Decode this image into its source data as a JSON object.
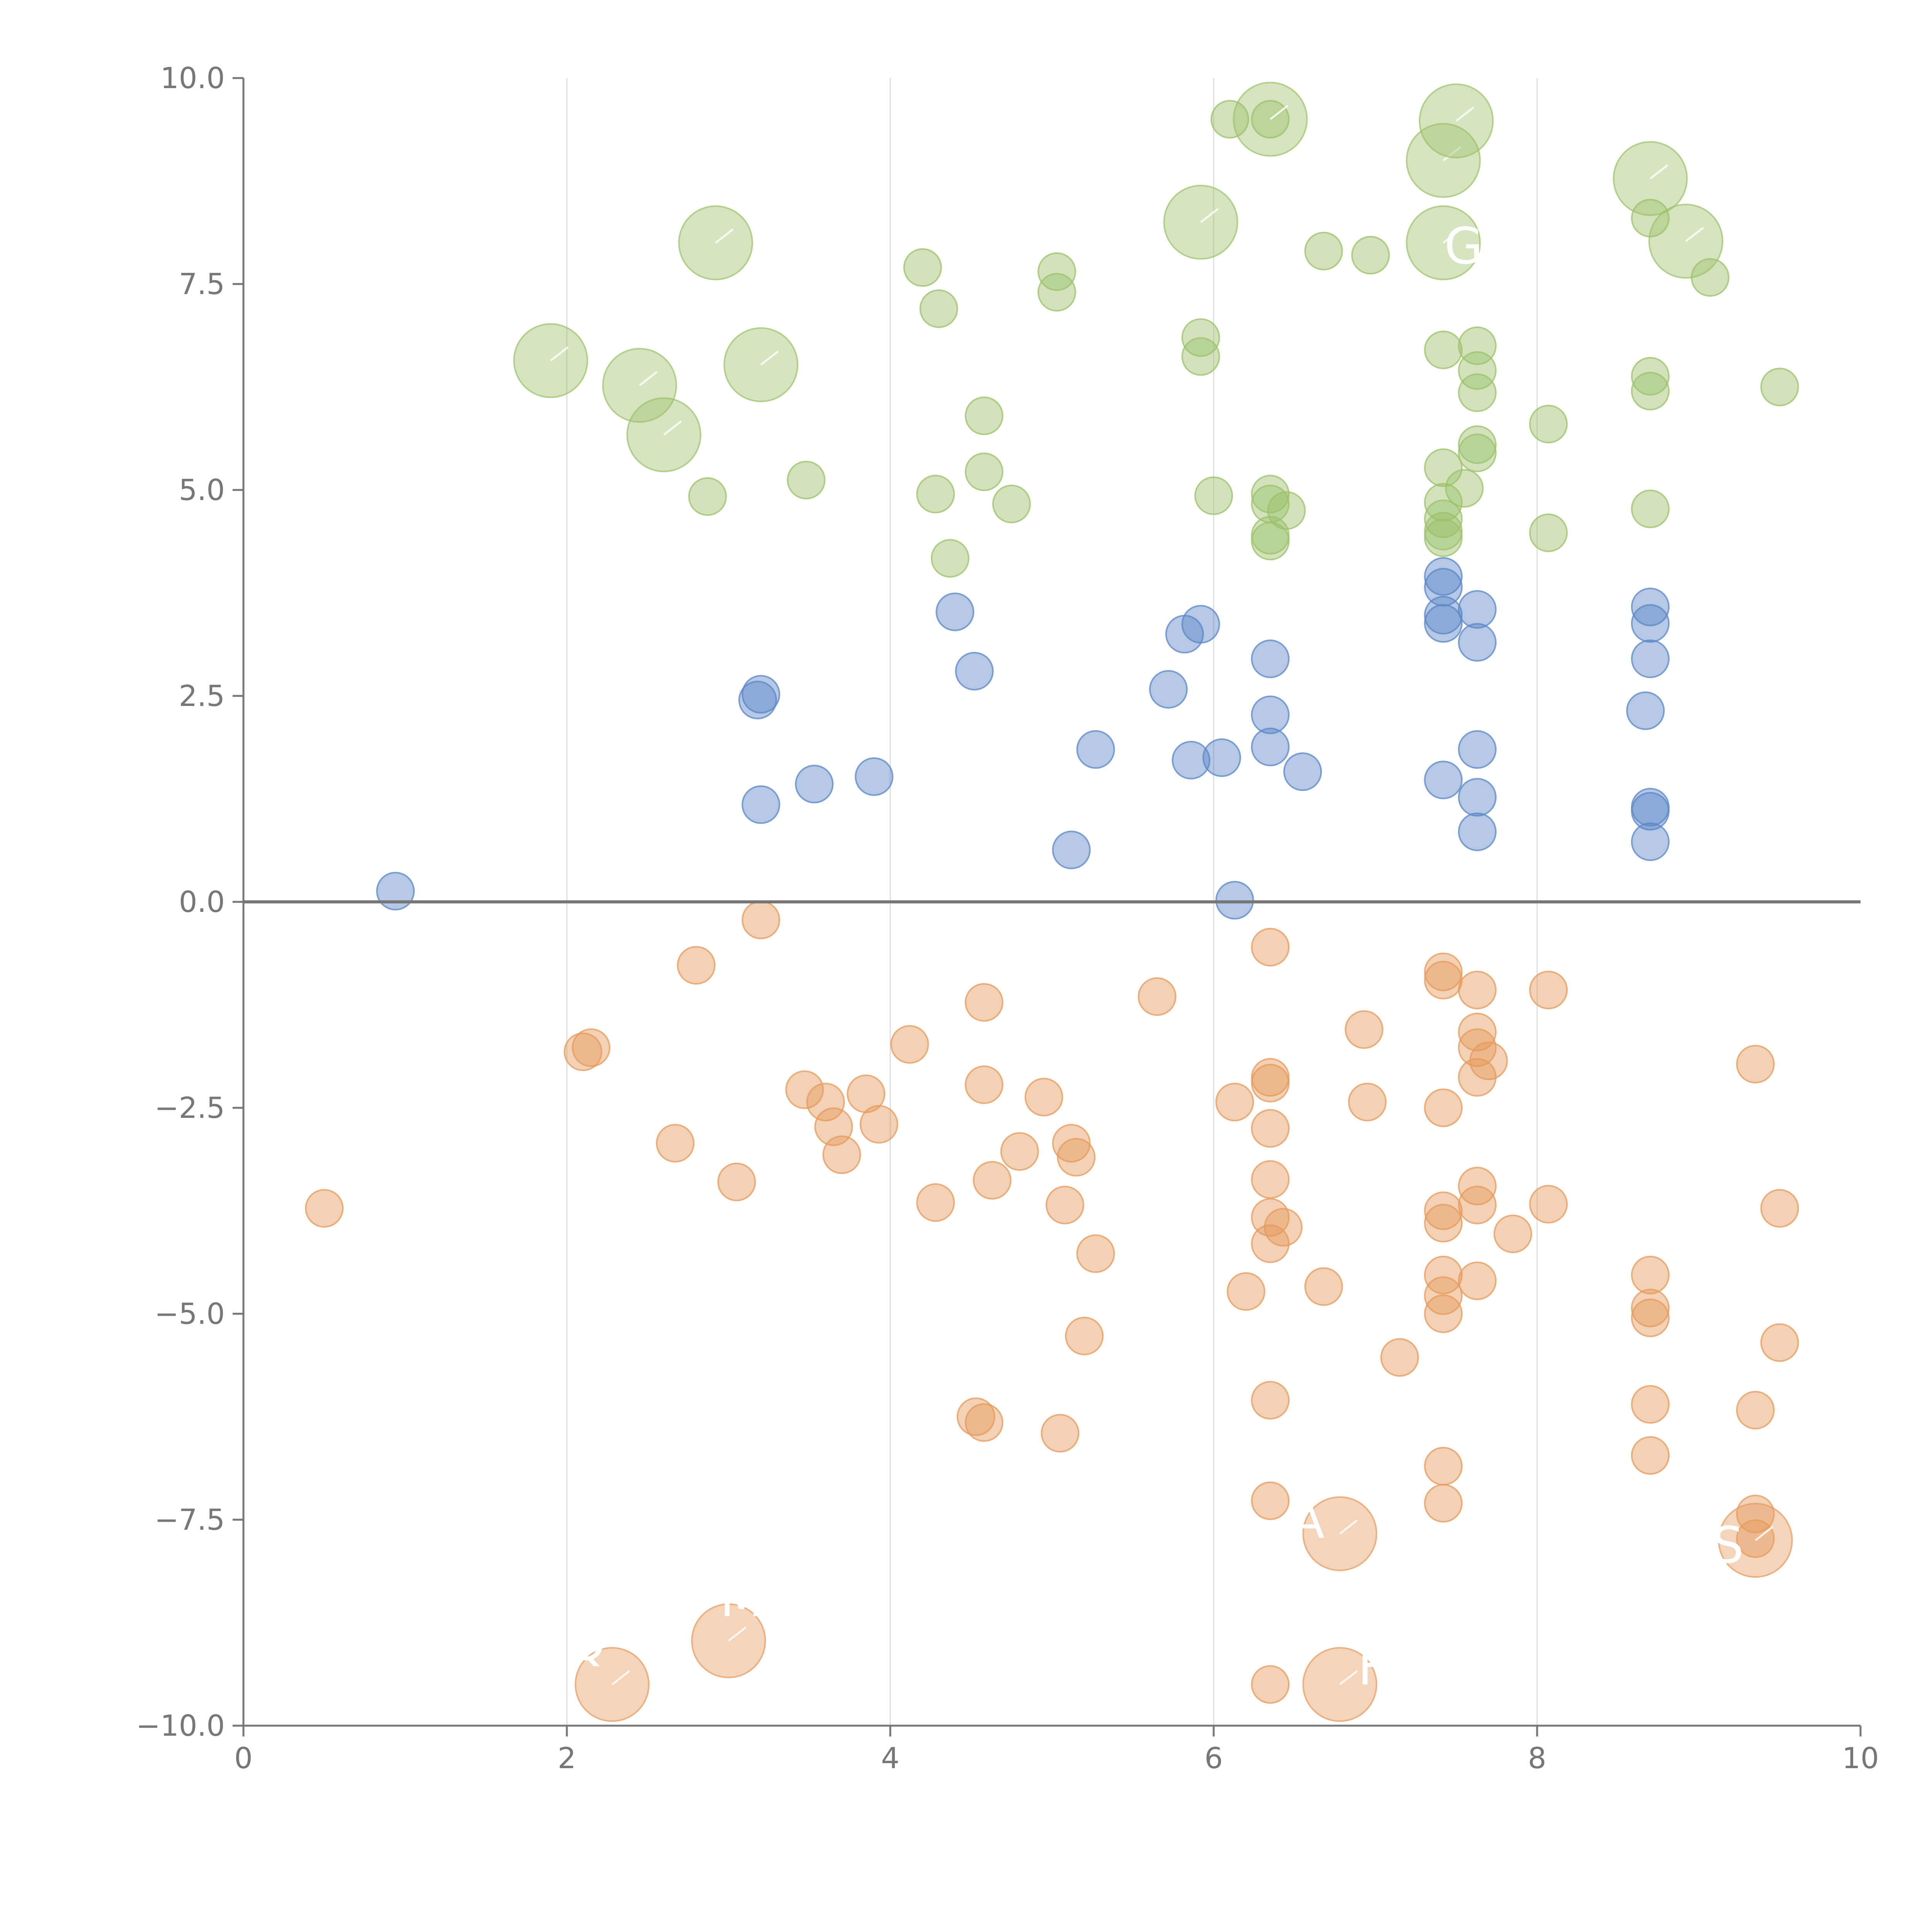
{
  "chart_data": {
    "type": "scatter",
    "title": "",
    "xlabel": "",
    "ylabel": "",
    "xlim": [
      0,
      10
    ],
    "ylim": [
      -10,
      10
    ],
    "x_ticks": [
      "0",
      "2",
      "4",
      "6",
      "8",
      "10"
    ],
    "y_ticks": [
      "10.0",
      "7.5",
      "5.0",
      "2.5",
      "0.0",
      "−2.5",
      "−5.0",
      "−7.5",
      "−10.0"
    ],
    "grid": "vertical",
    "zero_line": true,
    "colors": {
      "green": "#9cc06a",
      "blue": "#5b86c6",
      "orange": "#e59a5c",
      "axis": "#777777",
      "grid": "#dddddd",
      "zero": "#777777"
    },
    "series": [
      {
        "name": "green",
        "color": "#9cc06a",
        "points": [
          [
            4.2,
            7.7
          ],
          [
            4.3,
            7.2
          ],
          [
            5.03,
            7.65
          ],
          [
            5.03,
            7.4
          ],
          [
            6.1,
            9.5
          ],
          [
            6.35,
            9.5
          ],
          [
            6.68,
            7.9
          ],
          [
            6.97,
            7.85
          ],
          [
            5.92,
            6.85
          ],
          [
            5.92,
            6.62
          ],
          [
            7.42,
            6.7
          ],
          [
            7.63,
            6.75
          ],
          [
            7.63,
            6.45
          ],
          [
            7.63,
            6.18
          ],
          [
            8.07,
            5.8
          ],
          [
            8.7,
            6.38
          ],
          [
            8.7,
            6.2
          ],
          [
            8.7,
            8.3
          ],
          [
            9.07,
            7.58
          ],
          [
            9.5,
            6.25
          ],
          [
            4.58,
            5.9
          ],
          [
            4.58,
            5.22
          ],
          [
            4.28,
            4.95
          ],
          [
            4.75,
            4.83
          ],
          [
            4.37,
            4.17
          ],
          [
            3.48,
            5.12
          ],
          [
            2.87,
            4.92
          ],
          [
            6.0,
            4.93
          ],
          [
            6.35,
            4.95
          ],
          [
            6.35,
            4.83
          ],
          [
            6.35,
            4.45
          ],
          [
            6.35,
            4.38
          ],
          [
            6.45,
            4.75
          ],
          [
            7.42,
            5.27
          ],
          [
            7.42,
            4.85
          ],
          [
            7.42,
            4.65
          ],
          [
            7.42,
            4.5
          ],
          [
            7.42,
            4.42
          ],
          [
            7.55,
            5.02
          ],
          [
            7.63,
            5.55
          ],
          [
            7.63,
            5.45
          ],
          [
            8.07,
            4.48
          ],
          [
            8.7,
            4.77
          ]
        ],
        "big_points": [
          [
            1.9,
            6.57
          ],
          [
            2.45,
            6.27
          ],
          [
            2.6,
            5.67
          ],
          [
            2.92,
            8.0
          ],
          [
            3.2,
            6.52
          ],
          [
            5.92,
            8.25
          ],
          [
            6.35,
            9.5
          ],
          [
            7.42,
            9.0
          ],
          [
            7.5,
            9.48
          ],
          [
            7.42,
            8.0
          ],
          [
            8.7,
            8.78
          ],
          [
            8.92,
            8.02
          ]
        ]
      },
      {
        "name": "blue",
        "color": "#5b86c6",
        "points": [
          [
            0.94,
            0.13
          ],
          [
            3.18,
            2.45
          ],
          [
            3.2,
            2.52
          ],
          [
            3.2,
            1.18
          ],
          [
            3.53,
            1.43
          ],
          [
            3.9,
            1.52
          ],
          [
            4.4,
            3.52
          ],
          [
            4.52,
            2.8
          ],
          [
            5.12,
            0.63
          ],
          [
            5.27,
            1.85
          ],
          [
            5.72,
            2.58
          ],
          [
            5.82,
            3.25
          ],
          [
            5.86,
            1.72
          ],
          [
            5.92,
            3.37
          ],
          [
            6.05,
            1.75
          ],
          [
            6.13,
            0.02
          ],
          [
            6.35,
            2.95
          ],
          [
            6.35,
            2.27
          ],
          [
            6.35,
            1.88
          ],
          [
            6.55,
            1.58
          ],
          [
            7.42,
            3.95
          ],
          [
            7.42,
            3.82
          ],
          [
            7.42,
            3.48
          ],
          [
            7.42,
            3.38
          ],
          [
            7.42,
            1.48
          ],
          [
            7.63,
            3.55
          ],
          [
            7.63,
            3.15
          ],
          [
            7.63,
            1.85
          ],
          [
            7.63,
            1.27
          ],
          [
            7.63,
            0.85
          ],
          [
            8.67,
            2.32
          ],
          [
            8.7,
            3.58
          ],
          [
            8.7,
            3.38
          ],
          [
            8.7,
            2.95
          ],
          [
            8.7,
            1.15
          ],
          [
            8.7,
            1.1
          ],
          [
            8.7,
            0.73
          ]
        ]
      },
      {
        "name": "orange",
        "color": "#e59a5c",
        "points": [
          [
            0.5,
            -3.72
          ],
          [
            2.1,
            -1.82
          ],
          [
            2.15,
            -1.77
          ],
          [
            2.67,
            -2.93
          ],
          [
            2.8,
            -0.77
          ],
          [
            3.05,
            -3.4
          ],
          [
            3.2,
            -0.22
          ],
          [
            3.47,
            -2.28
          ],
          [
            3.6,
            -2.43
          ],
          [
            3.65,
            -2.73
          ],
          [
            3.7,
            -3.07
          ],
          [
            3.85,
            -2.33
          ],
          [
            3.93,
            -2.7
          ],
          [
            4.12,
            -1.73
          ],
          [
            4.28,
            -3.65
          ],
          [
            4.53,
            -6.25
          ],
          [
            4.58,
            -6.32
          ],
          [
            4.58,
            -1.22
          ],
          [
            4.58,
            -2.22
          ],
          [
            4.63,
            -3.38
          ],
          [
            4.8,
            -3.03
          ],
          [
            4.95,
            -2.37
          ],
          [
            5.05,
            -6.45
          ],
          [
            5.08,
            -3.68
          ],
          [
            5.12,
            -2.93
          ],
          [
            5.15,
            -3.1
          ],
          [
            5.2,
            -5.27
          ],
          [
            5.27,
            -4.27
          ],
          [
            5.65,
            -1.15
          ],
          [
            6.13,
            -2.43
          ],
          [
            6.2,
            -4.73
          ],
          [
            6.35,
            -0.55
          ],
          [
            6.35,
            -2.13
          ],
          [
            6.35,
            -2.2
          ],
          [
            6.35,
            -2.75
          ],
          [
            6.35,
            -3.37
          ],
          [
            6.35,
            -3.83
          ],
          [
            6.35,
            -4.15
          ],
          [
            6.43,
            -3.95
          ],
          [
            6.35,
            -6.05
          ],
          [
            6.35,
            -7.27
          ],
          [
            6.35,
            -9.5
          ],
          [
            6.68,
            -4.67
          ],
          [
            6.93,
            -1.55
          ],
          [
            6.95,
            -2.43
          ],
          [
            7.15,
            -5.53
          ],
          [
            7.42,
            -0.85
          ],
          [
            7.42,
            -0.95
          ],
          [
            7.42,
            -2.5
          ],
          [
            7.42,
            -3.75
          ],
          [
            7.42,
            -3.9
          ],
          [
            7.42,
            -4.53
          ],
          [
            7.42,
            -4.78
          ],
          [
            7.42,
            -5.0
          ],
          [
            7.42,
            -6.85
          ],
          [
            7.42,
            -7.3
          ],
          [
            7.63,
            -1.07
          ],
          [
            7.63,
            -1.58
          ],
          [
            7.63,
            -1.77
          ],
          [
            7.63,
            -2.13
          ],
          [
            7.7,
            -1.93
          ],
          [
            7.63,
            -3.45
          ],
          [
            7.63,
            -3.68
          ],
          [
            7.63,
            -4.6
          ],
          [
            7.85,
            -4.03
          ],
          [
            8.07,
            -1.07
          ],
          [
            8.07,
            -3.67
          ],
          [
            8.7,
            -4.53
          ],
          [
            8.7,
            -4.93
          ],
          [
            8.7,
            -5.05
          ],
          [
            8.7,
            -6.1
          ],
          [
            8.7,
            -6.72
          ],
          [
            9.35,
            -1.97
          ],
          [
            9.35,
            -7.43
          ],
          [
            9.35,
            -7.73
          ],
          [
            9.35,
            -6.17
          ],
          [
            9.5,
            -3.72
          ],
          [
            9.5,
            -5.35
          ]
        ],
        "big_points": [
          [
            2.28,
            -9.5
          ],
          [
            3.0,
            -8.97
          ],
          [
            6.78,
            -7.67
          ],
          [
            6.78,
            -9.5
          ],
          [
            9.35,
            -7.75
          ]
        ]
      }
    ],
    "annotations": [
      {
        "text": "GRI",
        "x": 7.7,
        "y": 7.75
      },
      {
        "text": "A",
        "x": 6.58,
        "y": -7.72
      },
      {
        "text": "M",
        "x": 3.08,
        "y": -8.67
      },
      {
        "text": "F",
        "x": 6.98,
        "y": -9.5
      },
      {
        "text": "S",
        "x": 9.18,
        "y": -8.02
      },
      {
        "text": "Q",
        "x": 2.12,
        "y": -9.2
      }
    ]
  }
}
